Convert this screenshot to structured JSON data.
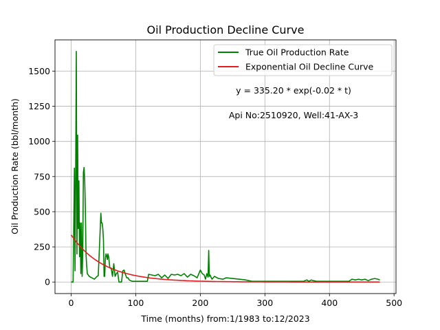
{
  "chart_data": {
    "type": "line",
    "title": "Oil Production Decline Curve",
    "xlabel": "Time (months) from:1/1983 to:12/2023",
    "ylabel": "Oil Production Rate (bbl/month)",
    "xlim": [
      -25,
      503
    ],
    "ylim": [
      -82,
      1722
    ],
    "xticks": [
      0,
      100,
      200,
      300,
      400,
      500
    ],
    "yticks": [
      0,
      250,
      500,
      750,
      1000,
      1250,
      1500
    ],
    "grid": true,
    "legend_position": "top-right",
    "series": [
      {
        "name": "True Oil Production Rate",
        "color": "#008000",
        "x": [
          0,
          3,
          5,
          6,
          7,
          8,
          9,
          10,
          11,
          12,
          13,
          14,
          15,
          16,
          17,
          18,
          19,
          20,
          21,
          22,
          23,
          24,
          25,
          28,
          32,
          36,
          40,
          42,
          44,
          46,
          47,
          48,
          49,
          50,
          51,
          52,
          53,
          54,
          55,
          56,
          57,
          58,
          60,
          62,
          64,
          66,
          68,
          70,
          72,
          74,
          76,
          78,
          80,
          82,
          84,
          86,
          88,
          90,
          92,
          95,
          100,
          105,
          110,
          115,
          118,
          120,
          125,
          130,
          135,
          140,
          145,
          150,
          155,
          160,
          165,
          170,
          175,
          180,
          185,
          190,
          195,
          200,
          203,
          206,
          208,
          210,
          212,
          213,
          214,
          215,
          218,
          222,
          228,
          235,
          240,
          250,
          260,
          270,
          280,
          285,
          290,
          300,
          310,
          320,
          330,
          340,
          350,
          360,
          362,
          365,
          368,
          372,
          375,
          380,
          385,
          390,
          395,
          400,
          410,
          420,
          430,
          435,
          440,
          445,
          450,
          455,
          460,
          465,
          470,
          475,
          478
        ],
        "y": [
          0,
          0,
          810,
          80,
          810,
          1640,
          200,
          1045,
          380,
          720,
          180,
          420,
          60,
          420,
          40,
          220,
          780,
          815,
          720,
          520,
          200,
          120,
          60,
          40,
          30,
          20,
          40,
          45,
          260,
          490,
          420,
          420,
          380,
          300,
          40,
          40,
          170,
          200,
          185,
          160,
          200,
          180,
          100,
          100,
          40,
          130,
          40,
          60,
          70,
          0,
          0,
          0,
          80,
          85,
          55,
          30,
          30,
          15,
          10,
          5,
          5,
          5,
          5,
          5,
          5,
          55,
          50,
          45,
          55,
          30,
          50,
          25,
          55,
          50,
          55,
          45,
          60,
          35,
          55,
          45,
          30,
          85,
          60,
          50,
          20,
          60,
          35,
          225,
          40,
          50,
          20,
          40,
          25,
          20,
          30,
          25,
          20,
          15,
          5,
          5,
          5,
          5,
          5,
          5,
          5,
          5,
          5,
          5,
          10,
          15,
          5,
          15,
          10,
          5,
          5,
          5,
          5,
          5,
          5,
          5,
          5,
          20,
          15,
          20,
          15,
          20,
          10,
          20,
          25,
          20,
          15
        ]
      },
      {
        "name": "Exponential Oil Decline Curve",
        "color": "#e41a1c",
        "model": {
          "a": 335.2,
          "b": -0.02,
          "x_start": 0,
          "x_end": 478
        }
      }
    ],
    "annotations": [
      "y = 335.20 * exp(-0.02 * t)",
      "Api No:2510920, Well:41-AX-3"
    ]
  }
}
